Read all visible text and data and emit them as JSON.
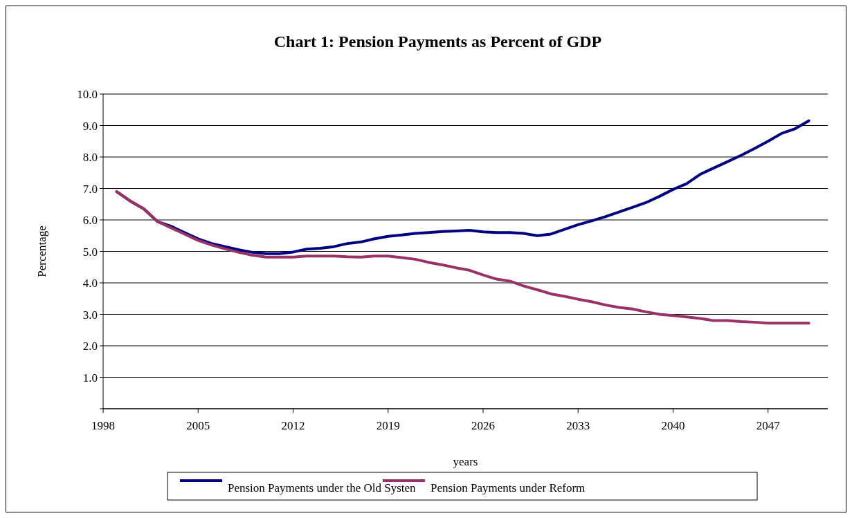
{
  "chart_data": {
    "type": "line",
    "title": "Chart 1:  Pension Payments as Percent of GDP",
    "xlabel": "years",
    "ylabel": "Percentage",
    "x": [
      1999,
      2000,
      2001,
      2002,
      2003,
      2004,
      2005,
      2006,
      2007,
      2008,
      2009,
      2010,
      2011,
      2012,
      2013,
      2014,
      2015,
      2016,
      2017,
      2018,
      2019,
      2020,
      2021,
      2022,
      2023,
      2024,
      2025,
      2026,
      2027,
      2028,
      2029,
      2030,
      2031,
      2032,
      2033,
      2034,
      2035,
      2036,
      2037,
      2038,
      2039,
      2040,
      2041,
      2042,
      2043,
      2044,
      2045,
      2046,
      2047,
      2048,
      2049,
      2050
    ],
    "series": [
      {
        "name": "Pension Payments under the Old Systen",
        "color": "#000080",
        "values": [
          6.9,
          6.6,
          6.35,
          5.95,
          5.8,
          5.6,
          5.4,
          5.25,
          5.15,
          5.05,
          4.97,
          4.93,
          4.93,
          4.98,
          5.07,
          5.1,
          5.15,
          5.25,
          5.3,
          5.4,
          5.48,
          5.52,
          5.57,
          5.6,
          5.63,
          5.65,
          5.67,
          5.62,
          5.6,
          5.6,
          5.57,
          5.5,
          5.55,
          5.7,
          5.85,
          5.97,
          6.1,
          6.25,
          6.4,
          6.55,
          6.75,
          6.97,
          7.15,
          7.45,
          7.65,
          7.85,
          8.05,
          8.27,
          8.5,
          8.75,
          8.9,
          9.15
        ]
      },
      {
        "name": "Pension Payments under Reform",
        "color": "#993366",
        "values": [
          6.9,
          6.6,
          6.35,
          5.95,
          5.75,
          5.55,
          5.35,
          5.2,
          5.08,
          4.97,
          4.88,
          4.82,
          4.82,
          4.82,
          4.85,
          4.85,
          4.85,
          4.83,
          4.82,
          4.85,
          4.85,
          4.8,
          4.75,
          4.65,
          4.57,
          4.48,
          4.4,
          4.25,
          4.12,
          4.05,
          3.9,
          3.78,
          3.65,
          3.57,
          3.48,
          3.4,
          3.3,
          3.22,
          3.17,
          3.08,
          3.0,
          2.96,
          2.92,
          2.87,
          2.8,
          2.8,
          2.77,
          2.75,
          2.72,
          2.72,
          2.72,
          2.72
        ]
      }
    ],
    "xlim": [
      1998,
      2051.4
    ],
    "xticks": [
      1998,
      2005,
      2012,
      2019,
      2026,
      2033,
      2040,
      2047
    ],
    "ylim": [
      0,
      10
    ],
    "yticks": [
      {
        "value": 0,
        "label": null
      },
      {
        "value": 1,
        "label": "1.0"
      },
      {
        "value": 2,
        "label": "2.0"
      },
      {
        "value": 3,
        "label": "3.0"
      },
      {
        "value": 4,
        "label": "4.0"
      },
      {
        "value": 5,
        "label": "5.0"
      },
      {
        "value": 6,
        "label": "6.0"
      },
      {
        "value": 7,
        "label": "7.0"
      },
      {
        "value": 8,
        "label": "8.0"
      },
      {
        "value": 9,
        "label": "9.0"
      },
      {
        "value": 10,
        "label": "10.0"
      }
    ],
    "grid": "y",
    "legend": "bottom",
    "marker": "none",
    "line_style": "solid"
  }
}
